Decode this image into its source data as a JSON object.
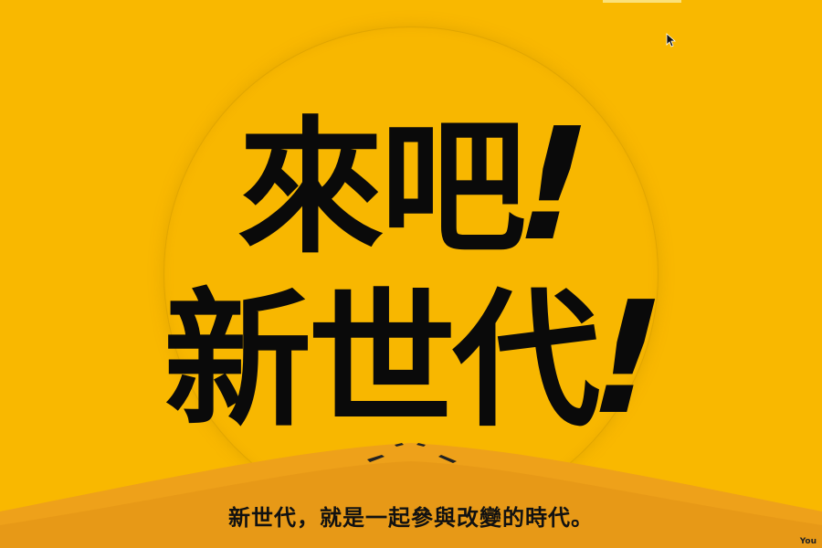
{
  "headline": {
    "line1": "來吧",
    "line2": "新世代",
    "exclamation": "!"
  },
  "tagline": "新世代，就是一起參與改變的時代。",
  "watermark": "You",
  "colors": {
    "background": "#f9b800",
    "hill_light": "#eea11a",
    "hill_dark": "#e08f15",
    "text": "#0a0a0a"
  },
  "icons": {
    "cursor": "mouse-pointer-icon"
  }
}
